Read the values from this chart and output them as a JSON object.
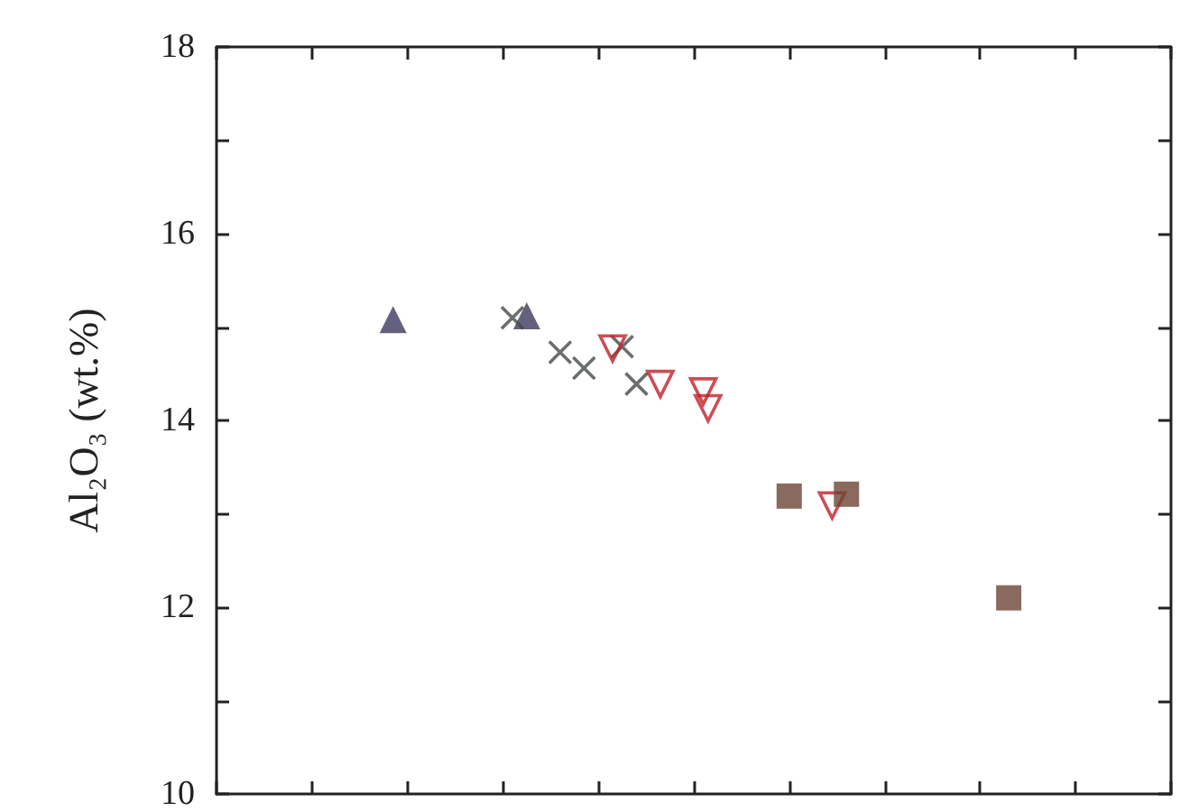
{
  "chart_data": {
    "type": "scatter",
    "ylabel": "Al₂O₃ (wt.%)",
    "categories": [
      null,
      null,
      null,
      null,
      null,
      null,
      null,
      null,
      null,
      null,
      null,
      null,
      null,
      null,
      null,
      null,
      null,
      null,
      null,
      null,
      null,
      null,
      null,
      null,
      null,
      null,
      null,
      null,
      null,
      null,
      null,
      null,
      null,
      null,
      null,
      null,
      null,
      null,
      null,
      null,
      null,
      null,
      null,
      null,
      null,
      null,
      null,
      null,
      null,
      null,
      null,
      null,
      null,
      null,
      null,
      null,
      null,
      null,
      null,
      null,
      null,
      null,
      null,
      null,
      null,
      null,
      null,
      null,
      null,
      null,
      null,
      null,
      null,
      null,
      null,
      null,
      null,
      null,
      null,
      null,
      null,
      null,
      null,
      null,
      null,
      null,
      null,
      null,
      null,
      null,
      null,
      null,
      null,
      null,
      null,
      null,
      null,
      null,
      null,
      null,
      null,
      null,
      null,
      null,
      null,
      null,
      null,
      null,
      null,
      null,
      null,
      null,
      null,
      null,
      null,
      null,
      null,
      null,
      null,
      null,
      null,
      null,
      null,
      null,
      null,
      null,
      null,
      null,
      null,
      null,
      null,
      null,
      null,
      null,
      null,
      null,
      null,
      null,
      null,
      null,
      null,
      null,
      null,
      null,
      null,
      null,
      null,
      null,
      null,
      null,
      null,
      null,
      null,
      null,
      null,
      null,
      null,
      null,
      null,
      null,
      null,
      null,
      null,
      null,
      null,
      null,
      null,
      null,
      null,
      null,
      null,
      null,
      null,
      null,
      null,
      null,
      null,
      null,
      null,
      null,
      null,
      null,
      null,
      null,
      null,
      null,
      null,
      null,
      null,
      null,
      null,
      null,
      null,
      null,
      null,
      null,
      null,
      null,
      null,
      null,
      null
    ],
    "ylim": [
      10,
      18
    ],
    "yticks": [
      10,
      {
        "value": 11,
        "label": null
      },
      12,
      {
        "value": 13,
        "label": null
      },
      14,
      {
        "value": 15,
        "label": null
      },
      16,
      {
        "value": 17,
        "label": null
      },
      18
    ],
    "tick_labels": "y",
    "series": [
      {
        "color": "#3d3a60",
        "marker": "triangle",
        "values": [
          null,
          null,
          null,
          null,
          null,
          null,
          null,
          null,
          null,
          null,
          null,
          null,
          null,
          null,
          null,
          null,
          null,
          null,
          null,
          null,
          null,
          null,
          null,
          null,
          null,
          null,
          null,
          null,
          null,
          null,
          null,
          null,
          null,
          null,
          null,
          null,
          null,
          15.08,
          null,
          null,
          null,
          null,
          null,
          null,
          null,
          null,
          null,
          null,
          null,
          null,
          null,
          null,
          null,
          null,
          null,
          null,
          null,
          null,
          null,
          null,
          null,
          null,
          null,
          null,
          null,
          15.12,
          null,
          null,
          null,
          null,
          null,
          null,
          null,
          null,
          null,
          null,
          null,
          null,
          null,
          null,
          null,
          null,
          null,
          null,
          null,
          null,
          null,
          null,
          null,
          null,
          null,
          null,
          null,
          null,
          null,
          null,
          null,
          null,
          null,
          null,
          null,
          null,
          null,
          null,
          null,
          null,
          null,
          null,
          null,
          null,
          null,
          null,
          null,
          null,
          null,
          null,
          null,
          null,
          null,
          null,
          null,
          null,
          null,
          null,
          null,
          null,
          null,
          null,
          null,
          null,
          null,
          null,
          null,
          null,
          null,
          null,
          null,
          null,
          null,
          null,
          null,
          null,
          null,
          null,
          null,
          null,
          null,
          null,
          null,
          null,
          null,
          null,
          null,
          null,
          null,
          null,
          null,
          null,
          null,
          null,
          null,
          null,
          null,
          null,
          null,
          null,
          null,
          null,
          null,
          null,
          null,
          null,
          null,
          null,
          null,
          null,
          null,
          null,
          null,
          null,
          null,
          null,
          null,
          null,
          null,
          null,
          null,
          null,
          null,
          null,
          null,
          null,
          null,
          null,
          null,
          null,
          null,
          null,
          null,
          null,
          null
        ]
      },
      {
        "color": "#454a48",
        "marker": "cross",
        "values": [
          null,
          null,
          null,
          null,
          null,
          null,
          null,
          null,
          null,
          null,
          null,
          null,
          null,
          null,
          null,
          null,
          null,
          null,
          null,
          null,
          null,
          null,
          null,
          null,
          null,
          null,
          null,
          null,
          null,
          null,
          null,
          null,
          null,
          null,
          null,
          null,
          null,
          null,
          null,
          null,
          null,
          null,
          null,
          null,
          null,
          null,
          null,
          null,
          null,
          null,
          null,
          null,
          null,
          null,
          null,
          null,
          null,
          null,
          null,
          null,
          null,
          null,
          15.1,
          null,
          null,
          null,
          null,
          null,
          null,
          null,
          null,
          null,
          14.73,
          null,
          null,
          null,
          null,
          14.56,
          null,
          null,
          null,
          null,
          null,
          null,
          null,
          14.79,
          null,
          null,
          14.39,
          null,
          null,
          null,
          null,
          null,
          null,
          null,
          null,
          null,
          null,
          null,
          null,
          null,
          null,
          null,
          null,
          null,
          null,
          null,
          null,
          null,
          null,
          null,
          null,
          null,
          null,
          null,
          null,
          null,
          null,
          null,
          null,
          null,
          null,
          null,
          null,
          null,
          null,
          null,
          null,
          null,
          null,
          null,
          null,
          null,
          null,
          null,
          null,
          null,
          null,
          null,
          null,
          null,
          null,
          null,
          null,
          null,
          null,
          null,
          null,
          null,
          null,
          null,
          null,
          null,
          null,
          null,
          null,
          null,
          null,
          null,
          null,
          null,
          null,
          null,
          null,
          null,
          null,
          null,
          null,
          null,
          null,
          null,
          null,
          null,
          null,
          null,
          null,
          null,
          null,
          null,
          null,
          null,
          null,
          null,
          null,
          null,
          null,
          null,
          null,
          null,
          null,
          null,
          null,
          null,
          null,
          null,
          null,
          null,
          null,
          null,
          null
        ]
      },
      {
        "color": "#c0202a",
        "marker": "triangle-down",
        "values": [
          null,
          null,
          null,
          null,
          null,
          null,
          null,
          null,
          null,
          null,
          null,
          null,
          null,
          null,
          null,
          null,
          null,
          null,
          null,
          null,
          null,
          null,
          null,
          null,
          null,
          null,
          null,
          null,
          null,
          null,
          null,
          null,
          null,
          null,
          null,
          null,
          null,
          null,
          null,
          null,
          null,
          null,
          null,
          null,
          null,
          null,
          null,
          null,
          null,
          null,
          null,
          null,
          null,
          null,
          null,
          null,
          null,
          null,
          null,
          null,
          null,
          null,
          null,
          null,
          null,
          null,
          null,
          null,
          null,
          null,
          null,
          null,
          null,
          null,
          null,
          null,
          null,
          null,
          null,
          null,
          null,
          null,
          null,
          14.77,
          null,
          null,
          null,
          null,
          null,
          null,
          null,
          null,
          null,
          14.39,
          null,
          null,
          null,
          null,
          null,
          null,
          null,
          null,
          14.31,
          14.13,
          null,
          null,
          null,
          null,
          null,
          null,
          null,
          null,
          null,
          null,
          null,
          null,
          null,
          null,
          null,
          null,
          null,
          null,
          null,
          null,
          null,
          null,
          null,
          null,
          null,
          13.09,
          null,
          null,
          null,
          null,
          null,
          null,
          null,
          null,
          null,
          null,
          null,
          null,
          null,
          null,
          null,
          null,
          null,
          null,
          null,
          null,
          null,
          null,
          null,
          null,
          null,
          null,
          null,
          null,
          null,
          null,
          null,
          null,
          null,
          null,
          null,
          null,
          null,
          null,
          null,
          null,
          null,
          null,
          null,
          null,
          null,
          null,
          null,
          null,
          null,
          null,
          null,
          null,
          null,
          null,
          null,
          null,
          null,
          null,
          null,
          null,
          null,
          null,
          null,
          null,
          null,
          null,
          null,
          null,
          null,
          null,
          null
        ]
      },
      {
        "color": "#6b4535",
        "marker": "square",
        "values": [
          null,
          null,
          null,
          null,
          null,
          null,
          null,
          null,
          null,
          null,
          null,
          null,
          null,
          null,
          null,
          null,
          null,
          null,
          null,
          null,
          null,
          null,
          null,
          null,
          null,
          null,
          null,
          null,
          null,
          null,
          null,
          null,
          null,
          null,
          null,
          null,
          null,
          null,
          null,
          null,
          null,
          null,
          null,
          null,
          null,
          null,
          null,
          null,
          null,
          null,
          null,
          null,
          null,
          null,
          null,
          null,
          null,
          null,
          null,
          null,
          null,
          null,
          null,
          null,
          null,
          null,
          null,
          null,
          null,
          null,
          null,
          null,
          null,
          null,
          null,
          null,
          null,
          null,
          null,
          null,
          null,
          null,
          null,
          null,
          null,
          null,
          null,
          null,
          null,
          null,
          null,
          null,
          null,
          null,
          null,
          null,
          null,
          null,
          null,
          null,
          null,
          null,
          null,
          null,
          null,
          null,
          null,
          null,
          null,
          null,
          null,
          null,
          null,
          null,
          null,
          null,
          null,
          null,
          null,
          null,
          13.19,
          null,
          null,
          null,
          null,
          null,
          null,
          null,
          null,
          null,
          null,
          null,
          13.21,
          null,
          null,
          null,
          null,
          null,
          null,
          null,
          null,
          null,
          null,
          null,
          null,
          null,
          null,
          null,
          null,
          null,
          null,
          null,
          null,
          null,
          null,
          null,
          null,
          null,
          null,
          null,
          null,
          null,
          null,
          null,
          null,
          null,
          12.1,
          null,
          null,
          null,
          null,
          null,
          null,
          null,
          null,
          null,
          null,
          null,
          null,
          null,
          null,
          null,
          null,
          null,
          null,
          null,
          null,
          null,
          null,
          null,
          null,
          null,
          null,
          null,
          null,
          null,
          null,
          null,
          null,
          null,
          null
        ]
      }
    ]
  }
}
